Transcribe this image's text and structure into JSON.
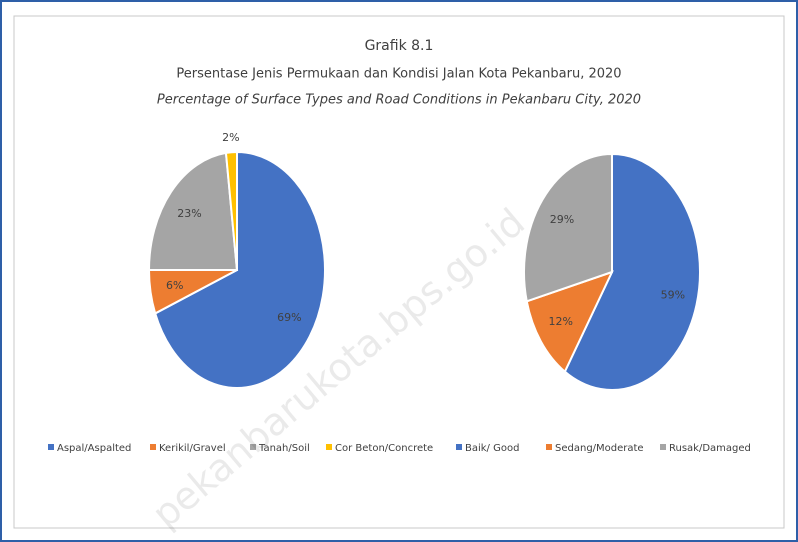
{
  "title": "Grafik 8.1",
  "subtitle": "Persentase Jenis Permukaan dan Kondisi Jalan Kota Pekanbaru, 2020",
  "subtitle_en": "Percentage of Surface Types and Road Conditions  in Pekanbaru City, 2020",
  "watermark": "pekanbarukota.bps.go.id",
  "chart_data": [
    {
      "type": "pie",
      "categories": [
        "Aspal/Aspalted",
        "Kerikil/Gravel",
        "Tanah/Soil",
        "Cor Beton/Concrete"
      ],
      "values": [
        69,
        6,
        23,
        2
      ],
      "value_labels": [
        "69%",
        "6%",
        "23%",
        "2%"
      ],
      "colors": [
        "#4472c4",
        "#ed7d31",
        "#a5a5a5",
        "#ffc000"
      ]
    },
    {
      "type": "pie",
      "categories": [
        "Baik/ Good",
        "Sedang/Moderate",
        "Rusak/Damaged"
      ],
      "values": [
        59,
        12,
        29
      ],
      "value_labels": [
        "59%",
        "12%",
        "29%"
      ],
      "colors": [
        "#4472c4",
        "#ed7d31",
        "#a5a5a5"
      ]
    }
  ]
}
